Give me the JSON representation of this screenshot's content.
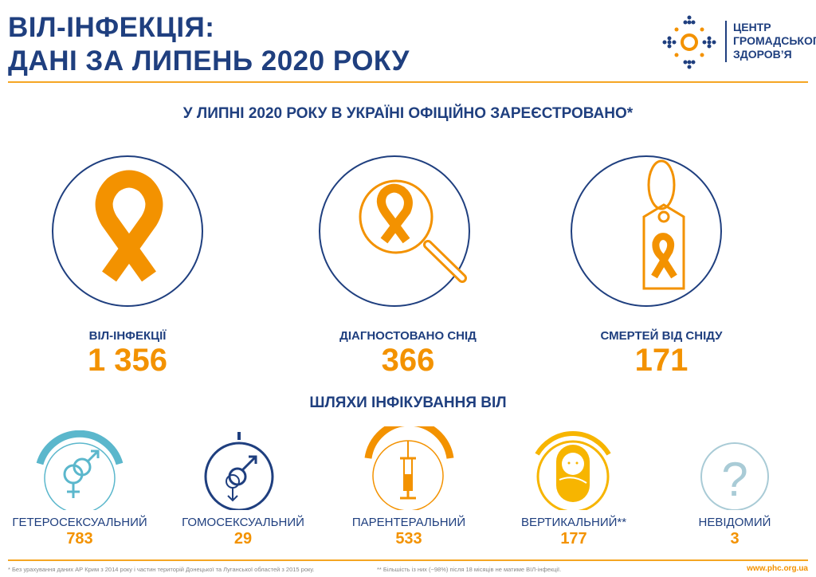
{
  "header": {
    "title_line1": "ВІЛ-ІНФЕКЦІЯ:",
    "title_line2": "ДАНІ ЗА ЛИПЕНЬ 2020 РОКУ"
  },
  "logo": {
    "line1": "ЦЕНТР",
    "line2": "ГРОМАДСЬКОГО",
    "line3": "ЗДОРОВ’Я"
  },
  "subtitle": {
    "part1": "У ",
    "bold": "ЛИПНІ 2020 РОКУ",
    "part2": " В УКРАЇНІ ОФІЦІЙНО ЗАРЕЄСТРОВАНО*"
  },
  "stats": [
    {
      "label": "ВІЛ-ІНФЕКЦІЇ",
      "value": "1 356",
      "icon": "ribbon-icon"
    },
    {
      "label": "ДІАГНОСТОВАНО СНІД",
      "value": "366",
      "icon": "magnifier-ribbon-icon"
    },
    {
      "label": "СМЕРТЕЙ ВІД СНІДУ",
      "value": "171",
      "icon": "tag-ribbon-icon"
    }
  ],
  "routes_title": "ШЛЯХИ ІНФІКУВАННЯ ВІЛ",
  "routes": [
    {
      "label": "ГЕТЕРОСЕКСУАЛЬНИЙ",
      "value": "783",
      "color": "#5bb7cc"
    },
    {
      "label": "ГОМОСЕКСУАЛЬНИЙ",
      "value": "29",
      "color": "#1f3f7f"
    },
    {
      "label": "ПАРЕНТЕРАЛЬНИЙ",
      "value": "533",
      "color": "#f39200"
    },
    {
      "label": "ВЕРТИКАЛЬНИЙ**",
      "value": "177",
      "color": "#f7b500"
    },
    {
      "label": "НЕВІДОМИЙ",
      "value": "3",
      "color": "#a9cbd6"
    }
  ],
  "footer": {
    "note1": "* Без урахування даних АР Крим з 2014 року і частин територій Донецької та Луганської областей з 2015 року.",
    "note2": "** Більшість із них (~98%) після 18 місяців не матиме ВІЛ-інфекції.",
    "url": "www.phc.org.ua"
  },
  "colors": {
    "navy": "#1f3f7f",
    "orange": "#f39200"
  }
}
